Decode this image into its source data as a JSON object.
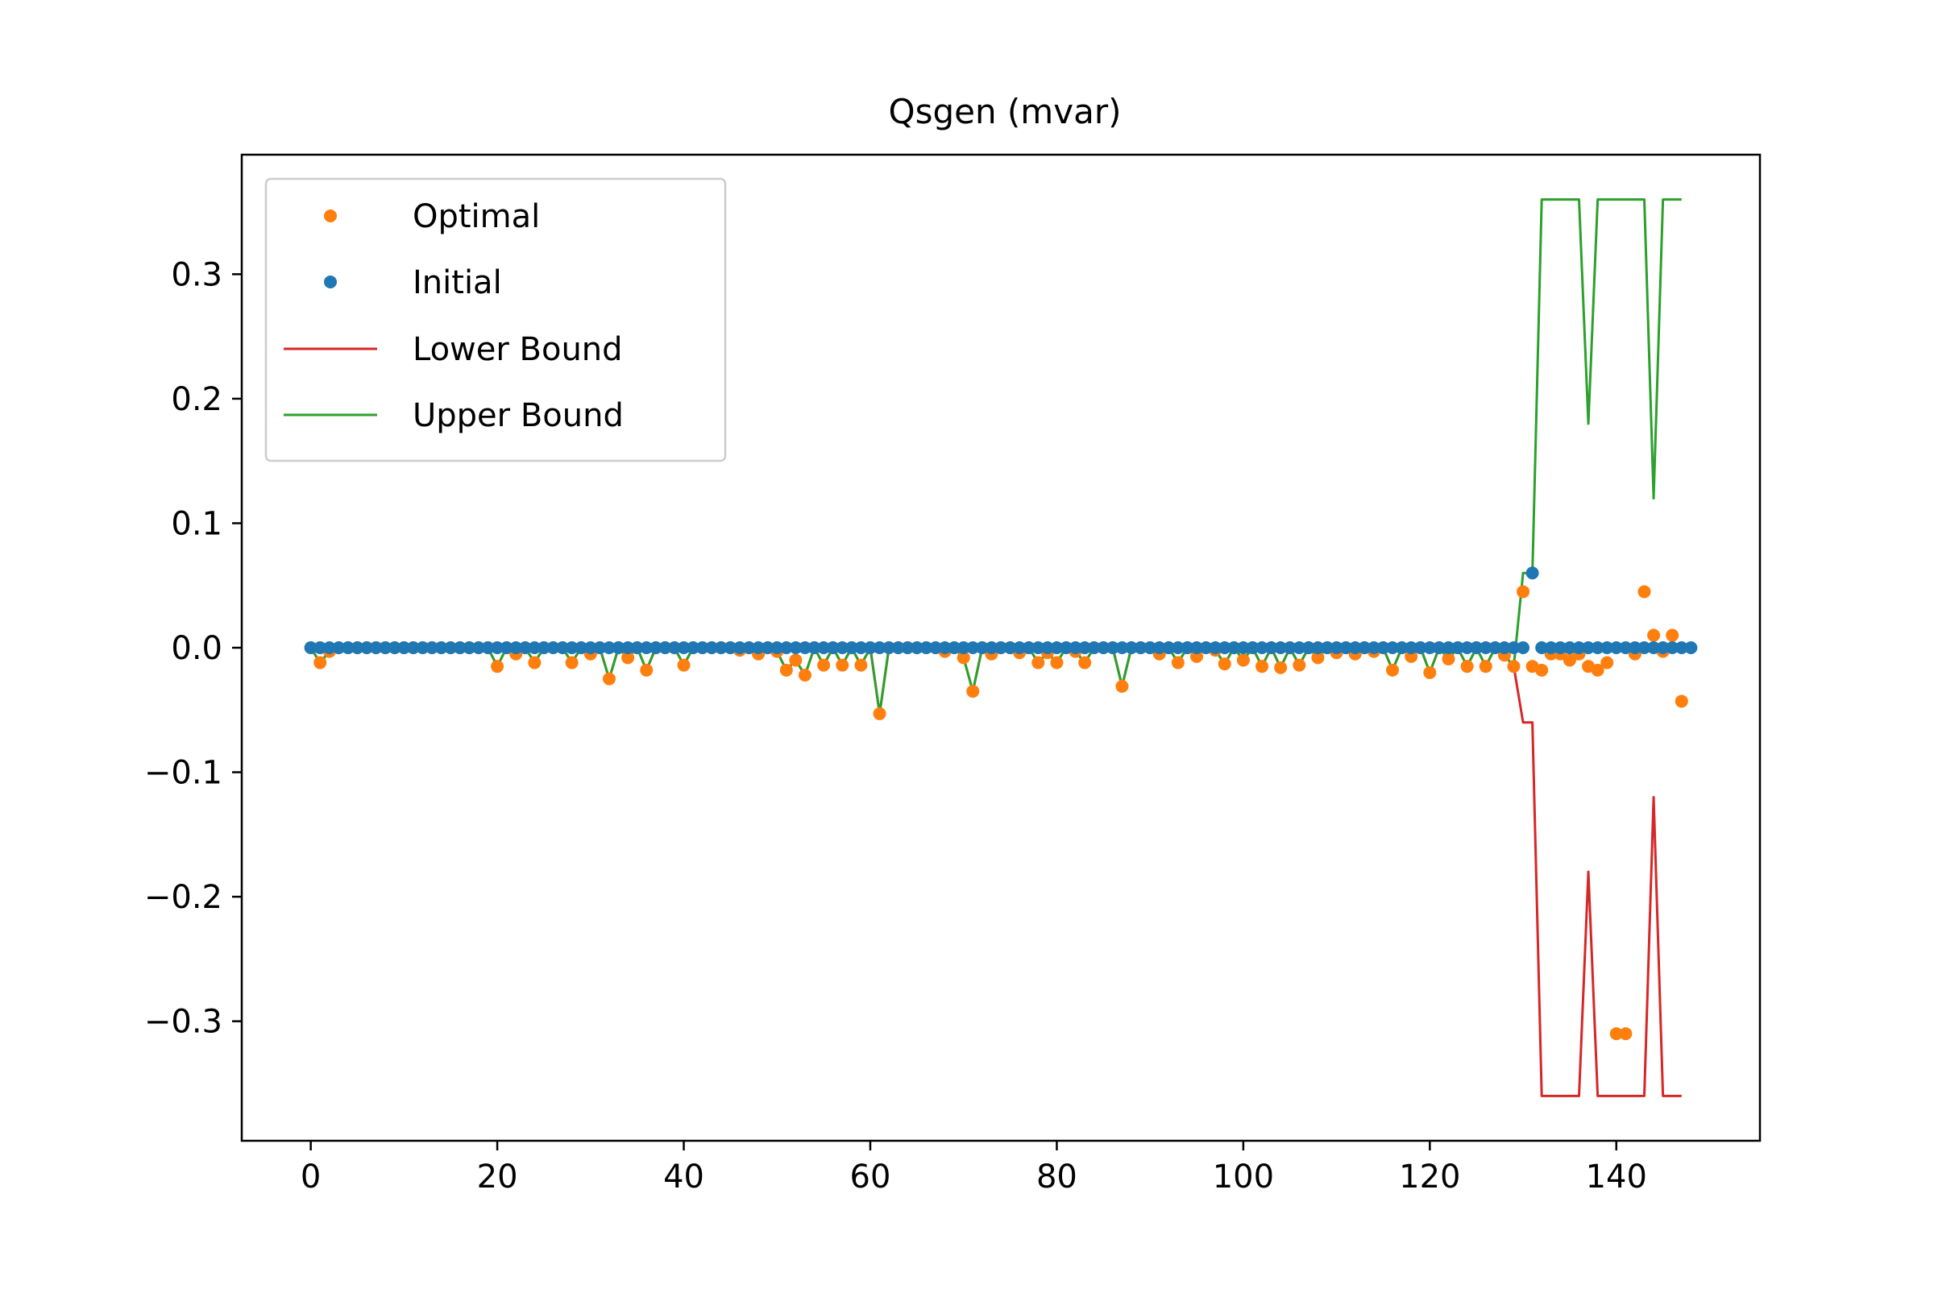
{
  "chart_data": {
    "type": "line",
    "title": "Qsgen (mvar)",
    "xlabel": "",
    "ylabel": "",
    "xlim": [
      -7.4,
      155.4
    ],
    "ylim": [
      -0.396,
      0.396
    ],
    "x_ticks": [
      0,
      20,
      40,
      60,
      80,
      100,
      120,
      140
    ],
    "y_ticks": [
      -0.3,
      -0.2,
      -0.1,
      0.0,
      0.1,
      0.2,
      0.3
    ],
    "x_tick_labels": [
      "0",
      "20",
      "40",
      "60",
      "80",
      "100",
      "120",
      "140"
    ],
    "y_tick_labels": [
      "−0.3",
      "−0.2",
      "−0.1",
      "0.0",
      "0.1",
      "0.2",
      "0.3"
    ],
    "grid": false,
    "legend_position": "upper-left",
    "series": [
      {
        "name": "Optimal",
        "kind": "scatter",
        "color": "#ff7f0e",
        "values": [
          0,
          -0.012,
          -0.003,
          0,
          0,
          0,
          0,
          0,
          0,
          0,
          0,
          0,
          0,
          0,
          0,
          0,
          0,
          0,
          0,
          0,
          -0.015,
          0,
          -0.005,
          0,
          -0.012,
          0,
          0,
          0,
          -0.012,
          0,
          -0.005,
          0,
          -0.025,
          0,
          -0.008,
          0,
          -0.018,
          0,
          0,
          0,
          -0.014,
          0,
          0,
          0,
          0,
          0,
          -0.002,
          0,
          -0.005,
          0,
          -0.003,
          -0.018,
          -0.01,
          -0.022,
          0,
          -0.014,
          0,
          -0.014,
          0,
          -0.014,
          0,
          -0.053,
          0,
          0,
          0,
          0,
          0,
          0,
          -0.003,
          0,
          -0.008,
          -0.035,
          0,
          -0.005,
          0,
          0,
          -0.004,
          0,
          -0.012,
          -0.004,
          -0.012,
          0,
          -0.003,
          -0.012,
          0,
          0,
          0,
          -0.031,
          0,
          0,
          0,
          -0.005,
          0,
          -0.012,
          0,
          -0.007,
          0,
          -0.002,
          -0.013,
          0,
          -0.01,
          0,
          -0.015,
          0,
          -0.016,
          0,
          -0.014,
          0,
          -0.008,
          0,
          -0.004,
          0,
          -0.005,
          0,
          -0.003,
          0,
          -0.018,
          0,
          -0.007,
          0,
          -0.02,
          0,
          -0.009,
          0,
          -0.015,
          0,
          -0.015,
          0,
          -0.006,
          -0.015,
          0.045,
          -0.015,
          -0.018,
          -0.005,
          -0.005,
          -0.01,
          -0.005,
          -0.015,
          -0.018,
          -0.012,
          -0.31,
          -0.31,
          -0.005,
          0.045,
          0.01,
          -0.003,
          0.01,
          -0.043
        ]
      },
      {
        "name": "Initial",
        "kind": "scatter",
        "color": "#1f77b4",
        "values": [
          0,
          0,
          0,
          0,
          0,
          0,
          0,
          0,
          0,
          0,
          0,
          0,
          0,
          0,
          0,
          0,
          0,
          0,
          0,
          0,
          0,
          0,
          0,
          0,
          0,
          0,
          0,
          0,
          0,
          0,
          0,
          0,
          0,
          0,
          0,
          0,
          0,
          0,
          0,
          0,
          0,
          0,
          0,
          0,
          0,
          0,
          0,
          0,
          0,
          0,
          0,
          0,
          0,
          0,
          0,
          0,
          0,
          0,
          0,
          0,
          0,
          0,
          0,
          0,
          0,
          0,
          0,
          0,
          0,
          0,
          0,
          0,
          0,
          0,
          0,
          0,
          0,
          0,
          0,
          0,
          0,
          0,
          0,
          0,
          0,
          0,
          0,
          0,
          0,
          0,
          0,
          0,
          0,
          0,
          0,
          0,
          0,
          0,
          0,
          0,
          0,
          0,
          0,
          0,
          0,
          0,
          0,
          0,
          0,
          0,
          0,
          0,
          0,
          0,
          0,
          0,
          0,
          0,
          0,
          0,
          0,
          0,
          0,
          0,
          0,
          0,
          0,
          0,
          0,
          0,
          0,
          0.06,
          0,
          0,
          0,
          0,
          0,
          0,
          0,
          0,
          0,
          0,
          0,
          0,
          0,
          0,
          0,
          0,
          0
        ]
      },
      {
        "name": "Lower Bound",
        "kind": "line",
        "color": "#d62728",
        "values": [
          0,
          -0.012,
          -0.003,
          0,
          0,
          0,
          0,
          0,
          0,
          0,
          0,
          0,
          0,
          0,
          0,
          0,
          0,
          0,
          0,
          0,
          -0.015,
          0,
          -0.005,
          0,
          -0.012,
          0,
          0,
          0,
          -0.012,
          0,
          -0.005,
          0,
          -0.025,
          0,
          -0.008,
          0,
          -0.018,
          0,
          0,
          0,
          -0.014,
          0,
          0,
          0,
          0,
          0,
          -0.002,
          0,
          -0.005,
          0,
          -0.003,
          -0.018,
          -0.01,
          -0.022,
          0,
          -0.014,
          0,
          -0.014,
          0,
          -0.014,
          0,
          -0.053,
          0,
          0,
          0,
          0,
          0,
          0,
          -0.003,
          0,
          -0.008,
          -0.035,
          0,
          -0.005,
          0,
          0,
          -0.004,
          0,
          -0.012,
          -0.004,
          -0.012,
          0,
          -0.003,
          -0.012,
          0,
          0,
          0,
          -0.031,
          0,
          0,
          0,
          -0.005,
          0,
          -0.012,
          0,
          -0.007,
          0,
          -0.002,
          -0.013,
          0,
          -0.01,
          0,
          -0.015,
          0,
          -0.016,
          0,
          -0.014,
          0,
          -0.008,
          0,
          -0.004,
          0,
          -0.005,
          0,
          -0.003,
          0,
          -0.018,
          0,
          -0.007,
          0,
          -0.02,
          0,
          -0.009,
          0,
          -0.015,
          0,
          -0.015,
          0,
          -0.006,
          -0.015,
          -0.06,
          -0.06,
          -0.36,
          -0.36,
          -0.36,
          -0.36,
          -0.36,
          -0.18,
          -0.36,
          -0.36,
          -0.36,
          -0.36,
          -0.36,
          -0.36,
          -0.12,
          -0.36,
          -0.36,
          -0.36
        ]
      },
      {
        "name": "Upper Bound",
        "kind": "line",
        "color": "#2ca02c",
        "values": [
          0,
          -0.012,
          -0.003,
          0,
          0,
          0,
          0,
          0,
          0,
          0,
          0,
          0,
          0,
          0,
          0,
          0,
          0,
          0,
          0,
          0,
          -0.015,
          0,
          -0.005,
          0,
          -0.012,
          0,
          0,
          0,
          -0.012,
          0,
          -0.005,
          0,
          -0.025,
          0,
          -0.008,
          0,
          -0.018,
          0,
          0,
          0,
          -0.014,
          0,
          0,
          0,
          0,
          0,
          -0.002,
          0,
          -0.005,
          0,
          -0.003,
          -0.018,
          -0.01,
          -0.022,
          0,
          -0.014,
          0,
          -0.014,
          0,
          -0.014,
          0,
          -0.053,
          0,
          0,
          0,
          0,
          0,
          0,
          -0.003,
          0,
          -0.008,
          -0.035,
          0,
          -0.005,
          0,
          0,
          -0.004,
          0,
          -0.012,
          -0.004,
          -0.012,
          0,
          -0.003,
          -0.012,
          0,
          0,
          0,
          -0.031,
          0,
          0,
          0,
          -0.005,
          0,
          -0.012,
          0,
          -0.007,
          0,
          -0.002,
          -0.013,
          0,
          -0.01,
          0,
          -0.015,
          0,
          -0.016,
          0,
          -0.014,
          0,
          -0.008,
          0,
          -0.004,
          0,
          -0.005,
          0,
          -0.003,
          0,
          -0.018,
          0,
          -0.007,
          0,
          -0.02,
          0,
          -0.009,
          0,
          -0.015,
          0,
          -0.015,
          0,
          -0.006,
          -0.015,
          0.06,
          0.06,
          0.36,
          0.36,
          0.36,
          0.36,
          0.36,
          0.18,
          0.36,
          0.36,
          0.36,
          0.36,
          0.36,
          0.36,
          0.12,
          0.36,
          0.36,
          0.36
        ]
      }
    ]
  }
}
